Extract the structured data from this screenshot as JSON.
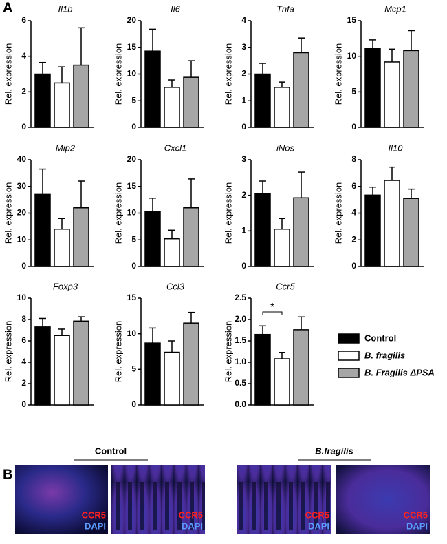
{
  "panel_labels": [
    "A",
    "B"
  ],
  "legend": [
    {
      "name": "Control",
      "color": "#000000"
    },
    {
      "name": "B. fragilis",
      "color": "#ffffff"
    },
    {
      "name": "B. Fragilis ΔPSA",
      "color": "#a6a6a6"
    }
  ],
  "chart_data": [
    {
      "type": "bar",
      "title": "Il1b",
      "ylabel": "Rel. expression",
      "values": [
        3.0,
        2.5,
        3.5
      ],
      "errors": [
        0.65,
        0.9,
        2.1
      ],
      "ylim": [
        0,
        6
      ],
      "yticks": [
        0,
        2,
        4,
        6
      ]
    },
    {
      "type": "bar",
      "title": "Il6",
      "ylabel": "Rel. expression",
      "values": [
        14.3,
        7.5,
        9.4
      ],
      "errors": [
        4.1,
        1.4,
        3.1
      ],
      "ylim": [
        0,
        20
      ],
      "yticks": [
        0,
        5,
        10,
        15,
        20
      ]
    },
    {
      "type": "bar",
      "title": "Tnfa",
      "ylabel": "Rel. expression",
      "values": [
        2.0,
        1.5,
        2.8
      ],
      "errors": [
        0.4,
        0.2,
        0.55
      ],
      "ylim": [
        0,
        4
      ],
      "yticks": [
        0,
        1,
        2,
        3,
        4
      ]
    },
    {
      "type": "bar",
      "title": "Mcp1",
      "ylabel": "Rel. expression",
      "values": [
        11.1,
        9.2,
        10.8
      ],
      "errors": [
        1.2,
        1.8,
        2.8
      ],
      "ylim": [
        0,
        15
      ],
      "yticks": [
        0,
        5,
        10,
        15
      ]
    },
    {
      "type": "bar",
      "title": "Mip2",
      "ylabel": "Rel. expression",
      "values": [
        27,
        14,
        22
      ],
      "errors": [
        9.5,
        4,
        10
      ],
      "ylim": [
        0,
        40
      ],
      "yticks": [
        0,
        10,
        20,
        30,
        40
      ]
    },
    {
      "type": "bar",
      "title": "Cxcl1",
      "ylabel": "Rel. expression",
      "values": [
        10.3,
        5.2,
        11
      ],
      "errors": [
        2.5,
        1.6,
        5.4
      ],
      "ylim": [
        0,
        20
      ],
      "yticks": [
        0,
        5,
        10,
        15,
        20
      ]
    },
    {
      "type": "bar",
      "title": "iNos",
      "ylabel": "Rel. expression",
      "values": [
        2.05,
        1.05,
        1.93
      ],
      "errors": [
        0.35,
        0.3,
        0.72
      ],
      "ylim": [
        0,
        3
      ],
      "yticks": [
        0,
        1,
        2,
        3
      ]
    },
    {
      "type": "bar",
      "title": "Il10",
      "ylabel": "Rel. expression",
      "values": [
        5.35,
        6.45,
        5.1
      ],
      "errors": [
        0.6,
        1.0,
        0.7
      ],
      "ylim": [
        0,
        8
      ],
      "yticks": [
        0,
        2,
        4,
        6,
        8
      ]
    },
    {
      "type": "bar",
      "title": "Foxp3",
      "ylabel": "Rel. expression",
      "values": [
        7.3,
        6.5,
        7.85
      ],
      "errors": [
        0.8,
        0.6,
        0.4
      ],
      "ylim": [
        0,
        10
      ],
      "yticks": [
        0,
        2,
        4,
        6,
        8,
        10
      ]
    },
    {
      "type": "bar",
      "title": "Ccl3",
      "ylabel": "Rel. expression",
      "values": [
        8.7,
        7.4,
        11.5
      ],
      "errors": [
        2.1,
        1.6,
        1.5
      ],
      "ylim": [
        0,
        15
      ],
      "yticks": [
        0,
        5,
        10,
        15
      ]
    },
    {
      "type": "bar",
      "title": "Ccr5",
      "ylabel": "Rel. expression",
      "values": [
        1.65,
        1.08,
        1.76
      ],
      "errors": [
        0.2,
        0.15,
        0.3
      ],
      "ylim": [
        0,
        2.5
      ],
      "yticks": [
        {
          "value": 0,
          "label": "0.0"
        },
        {
          "value": 0.5,
          "label": "0.5"
        },
        {
          "value": 1,
          "label": "1.0"
        },
        {
          "value": 1.5,
          "label": "1.5"
        },
        {
          "value": 2,
          "label": "2.0"
        },
        {
          "value": 2.5,
          "label": "2.5"
        }
      ],
      "annotation": "*"
    }
  ],
  "panel_b": [
    {
      "label": "Control",
      "images": [
        {
          "stains": [
            "CCR5",
            "DAPI"
          ]
        },
        {
          "stains": [
            "CCR5",
            "DAPI"
          ]
        }
      ]
    },
    {
      "label": "B.fragilis",
      "images": [
        {
          "stains": [
            "CCR5",
            "DAPI"
          ]
        },
        {
          "stains": [
            "CCR5",
            "DAPI"
          ]
        }
      ]
    }
  ]
}
